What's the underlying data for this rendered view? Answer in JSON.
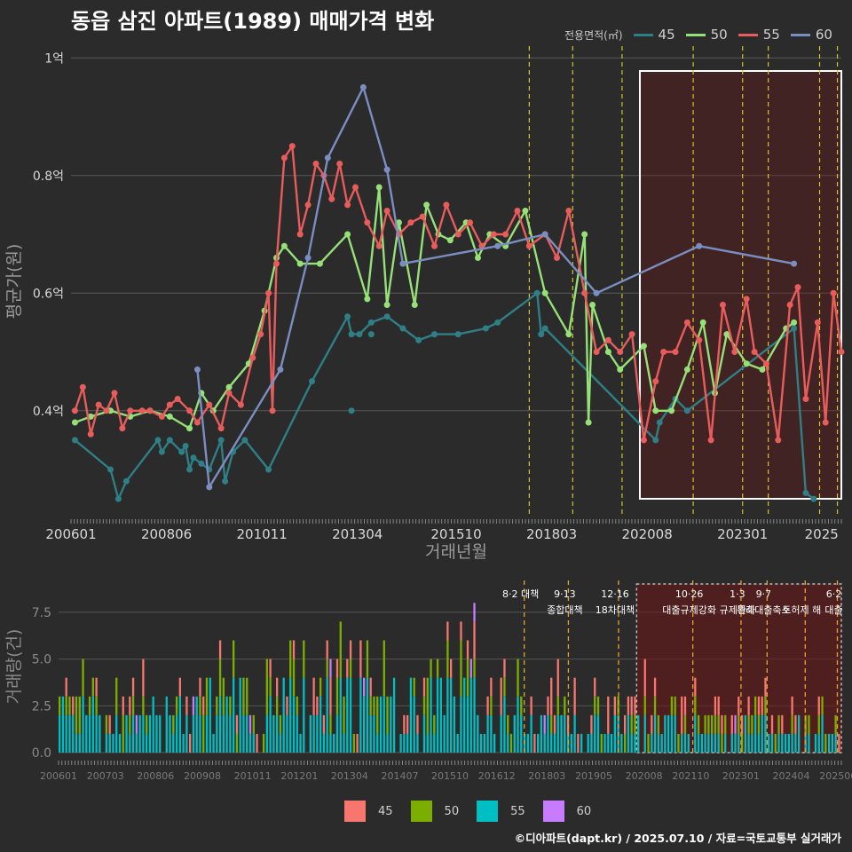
{
  "title": "동읍 삼진 아파트(1989) 매매가격 변화",
  "legend": {
    "label": "전용면적(㎡)",
    "items": [
      {
        "name": "45",
        "color": "#2e7f86"
      },
      {
        "name": "50",
        "color": "#96e078"
      },
      {
        "name": "55",
        "color": "#e85c5c"
      },
      {
        "name": "60",
        "color": "#7b8ec2"
      }
    ]
  },
  "bar_legend": [
    {
      "name": "45",
      "color": "#f8766d"
    },
    {
      "name": "50",
      "color": "#7cae00"
    },
    {
      "name": "55",
      "color": "#00bfc4"
    },
    {
      "name": "60",
      "color": "#c77cff"
    }
  ],
  "footer": "©디아파트(dapt.kr) / 2025.07.10 / 자료=국토교통부 실거래가",
  "chart_data": [
    {
      "type": "line",
      "title": "동읍 삼진 아파트(1989) 매매가격 변화",
      "xlabel": "거래년월",
      "ylabel": "평균가(원)",
      "x_ticks": [
        "200601",
        "200806",
        "201011",
        "201304",
        "201510",
        "201803",
        "202008",
        "202301",
        "2025"
      ],
      "y_ticks": [
        {
          "v": 0.4,
          "label": "0.4억"
        },
        {
          "v": 0.6,
          "label": "0.6억"
        },
        {
          "v": 0.8,
          "label": "0.8억"
        },
        {
          "v": 1.0,
          "label": "1억"
        }
      ],
      "ylim": [
        0.22,
        1.02
      ],
      "xlim": [
        2006.0,
        2025.5
      ],
      "grid": true,
      "legend_position": "top-right",
      "series": [
        {
          "name": "45",
          "color": "#2e7f86",
          "points": [
            [
              2006.1,
              0.35
            ],
            [
              2007.0,
              0.3
            ],
            [
              2007.2,
              0.25
            ],
            [
              2007.4,
              0.28
            ],
            [
              2008.2,
              0.35
            ],
            [
              2008.3,
              0.33
            ],
            [
              2008.5,
              0.35
            ],
            [
              2008.8,
              0.33
            ],
            [
              2008.9,
              0.34
            ],
            [
              2009.0,
              0.3
            ],
            [
              2009.1,
              0.32
            ],
            [
              2009.3,
              0.31
            ],
            [
              2009.5,
              0.3
            ],
            [
              2009.8,
              0.35
            ],
            [
              2009.9,
              0.28
            ],
            [
              2010.1,
              0.33
            ],
            [
              2010.4,
              0.35
            ],
            [
              2011.0,
              0.3
            ],
            [
              2012.1,
              0.45
            ],
            [
              2013.0,
              0.56
            ],
            [
              2013.1,
              0.53
            ],
            [
              2013.3,
              0.53
            ],
            [
              2013.6,
              0.55
            ],
            [
              2014.0,
              0.56
            ],
            [
              2014.4,
              0.54
            ],
            [
              2014.8,
              0.52
            ],
            [
              2015.2,
              0.53
            ],
            [
              2015.8,
              0.53
            ],
            [
              2016.5,
              0.54
            ],
            [
              2016.8,
              0.55
            ],
            [
              2017.8,
              0.6
            ],
            [
              2017.9,
              0.53
            ],
            [
              2018.0,
              0.54
            ],
            [
              2020.8,
              0.35
            ],
            [
              2020.9,
              0.38
            ],
            [
              2021.3,
              0.42
            ],
            [
              2021.6,
              0.4
            ],
            [
              2024.3,
              0.54
            ],
            [
              2024.6,
              0.26
            ],
            [
              2024.8,
              0.25
            ]
          ],
          "extra_points": [
            [
              2013.1,
              0.4
            ],
            [
              2013.6,
              0.53
            ]
          ]
        },
        {
          "name": "50",
          "color": "#96e078",
          "points": [
            [
              2006.1,
              0.38
            ],
            [
              2006.5,
              0.39
            ],
            [
              2007.0,
              0.4
            ],
            [
              2007.5,
              0.39
            ],
            [
              2008.0,
              0.4
            ],
            [
              2008.5,
              0.39
            ],
            [
              2009.0,
              0.37
            ],
            [
              2009.3,
              0.43
            ],
            [
              2009.6,
              0.4
            ],
            [
              2010.0,
              0.44
            ],
            [
              2010.5,
              0.48
            ],
            [
              2010.9,
              0.57
            ],
            [
              2011.2,
              0.66
            ],
            [
              2011.4,
              0.68
            ],
            [
              2011.8,
              0.65
            ],
            [
              2012.3,
              0.65
            ],
            [
              2013.0,
              0.7
            ],
            [
              2013.5,
              0.59
            ],
            [
              2013.8,
              0.78
            ],
            [
              2014.0,
              0.58
            ],
            [
              2014.3,
              0.72
            ],
            [
              2014.7,
              0.58
            ],
            [
              2015.0,
              0.75
            ],
            [
              2015.3,
              0.7
            ],
            [
              2015.6,
              0.69
            ],
            [
              2016.0,
              0.72
            ],
            [
              2016.3,
              0.66
            ],
            [
              2016.6,
              0.7
            ],
            [
              2017.0,
              0.68
            ],
            [
              2017.5,
              0.74
            ],
            [
              2018.0,
              0.6
            ],
            [
              2018.6,
              0.53
            ],
            [
              2019.0,
              0.7
            ],
            [
              2019.1,
              0.38
            ],
            [
              2019.2,
              0.58
            ],
            [
              2019.6,
              0.5
            ],
            [
              2019.9,
              0.47
            ],
            [
              2020.5,
              0.51
            ],
            [
              2020.8,
              0.4
            ],
            [
              2021.2,
              0.4
            ],
            [
              2021.6,
              0.47
            ],
            [
              2022.0,
              0.55
            ],
            [
              2022.3,
              0.43
            ],
            [
              2022.6,
              0.53
            ],
            [
              2023.1,
              0.48
            ],
            [
              2023.5,
              0.47
            ],
            [
              2024.1,
              0.54
            ],
            [
              2024.3,
              0.55
            ]
          ]
        },
        {
          "name": "55",
          "color": "#e85c5c",
          "points": [
            [
              2006.1,
              0.4
            ],
            [
              2006.3,
              0.44
            ],
            [
              2006.5,
              0.36
            ],
            [
              2006.7,
              0.41
            ],
            [
              2006.9,
              0.4
            ],
            [
              2007.1,
              0.43
            ],
            [
              2007.3,
              0.37
            ],
            [
              2007.5,
              0.4
            ],
            [
              2007.8,
              0.4
            ],
            [
              2008.0,
              0.4
            ],
            [
              2008.3,
              0.39
            ],
            [
              2008.5,
              0.41
            ],
            [
              2008.7,
              0.42
            ],
            [
              2009.0,
              0.4
            ],
            [
              2009.2,
              0.38
            ],
            [
              2009.5,
              0.41
            ],
            [
              2009.8,
              0.37
            ],
            [
              2010.0,
              0.43
            ],
            [
              2010.3,
              0.41
            ],
            [
              2010.6,
              0.49
            ],
            [
              2010.8,
              0.53
            ],
            [
              2011.0,
              0.6
            ],
            [
              2011.1,
              0.4
            ],
            [
              2011.2,
              0.65
            ],
            [
              2011.4,
              0.83
            ],
            [
              2011.6,
              0.85
            ],
            [
              2011.8,
              0.7
            ],
            [
              2012.0,
              0.75
            ],
            [
              2012.2,
              0.82
            ],
            [
              2012.4,
              0.8
            ],
            [
              2012.6,
              0.76
            ],
            [
              2012.8,
              0.82
            ],
            [
              2013.0,
              0.75
            ],
            [
              2013.2,
              0.78
            ],
            [
              2013.5,
              0.72
            ],
            [
              2013.8,
              0.68
            ],
            [
              2014.0,
              0.74
            ],
            [
              2014.3,
              0.7
            ],
            [
              2014.6,
              0.72
            ],
            [
              2014.9,
              0.73
            ],
            [
              2015.2,
              0.68
            ],
            [
              2015.5,
              0.75
            ],
            [
              2015.8,
              0.7
            ],
            [
              2016.1,
              0.72
            ],
            [
              2016.4,
              0.68
            ],
            [
              2016.7,
              0.7
            ],
            [
              2017.0,
              0.7
            ],
            [
              2017.3,
              0.74
            ],
            [
              2017.6,
              0.68
            ],
            [
              2018.0,
              0.7
            ],
            [
              2018.3,
              0.66
            ],
            [
              2018.6,
              0.74
            ],
            [
              2019.0,
              0.6
            ],
            [
              2019.3,
              0.5
            ],
            [
              2019.6,
              0.52
            ],
            [
              2019.9,
              0.5
            ],
            [
              2020.2,
              0.53
            ],
            [
              2020.5,
              0.35
            ],
            [
              2020.8,
              0.45
            ],
            [
              2021.0,
              0.5
            ],
            [
              2021.3,
              0.5
            ],
            [
              2021.6,
              0.55
            ],
            [
              2021.9,
              0.52
            ],
            [
              2022.2,
              0.35
            ],
            [
              2022.5,
              0.58
            ],
            [
              2022.8,
              0.5
            ],
            [
              2023.1,
              0.59
            ],
            [
              2023.3,
              0.5
            ],
            [
              2023.6,
              0.48
            ],
            [
              2023.9,
              0.35
            ],
            [
              2024.2,
              0.58
            ],
            [
              2024.4,
              0.61
            ],
            [
              2024.6,
              0.42
            ],
            [
              2024.9,
              0.55
            ],
            [
              2025.1,
              0.38
            ],
            [
              2025.3,
              0.6
            ],
            [
              2025.5,
              0.5
            ]
          ]
        },
        {
          "name": "60",
          "color": "#7b8ec2",
          "points": [
            [
              2009.2,
              0.47
            ],
            [
              2009.5,
              0.27
            ],
            [
              2011.3,
              0.47
            ],
            [
              2012.0,
              0.66
            ],
            [
              2012.5,
              0.83
            ],
            [
              2013.4,
              0.95
            ],
            [
              2014.0,
              0.81
            ],
            [
              2014.4,
              0.65
            ],
            [
              2016.8,
              0.68
            ],
            [
              2018.0,
              0.7
            ],
            [
              2019.3,
              0.6
            ],
            [
              2021.9,
              0.68
            ],
            [
              2024.3,
              0.65
            ]
          ]
        }
      ],
      "highlight_region": {
        "x_start": 2020.4,
        "x_end": 2025.5
      },
      "policy_lines": [
        2017.6,
        2018.7,
        2019.95,
        2021.75,
        2023.0,
        2023.65,
        2024.95,
        2025.4
      ]
    },
    {
      "type": "bar",
      "ylabel": "거래량(건)",
      "x_ticks": [
        "200601",
        "200703",
        "200806",
        "200908",
        "201011",
        "201201",
        "201304",
        "201407",
        "201510",
        "201612",
        "201803",
        "201905",
        "202008",
        "202110",
        "202301",
        "202404",
        "202506"
      ],
      "y_ticks": [
        0.0,
        2.5,
        5.0,
        7.5
      ],
      "ylim": [
        0,
        9.2
      ],
      "xlim": [
        2006.0,
        2025.5
      ],
      "stack_order": [
        "55",
        "50",
        "45",
        "60"
      ],
      "annotations": [
        {
          "date": "8·2 대책",
          "text": "",
          "x": 2017.6
        },
        {
          "date": "9·13",
          "text": "종합대책",
          "x": 2018.7
        },
        {
          "date": "12·16",
          "text": "18차대책",
          "x": 2019.95
        },
        {
          "date": "10·26",
          "text": "대출규제강화",
          "x": 2021.8
        },
        {
          "date": "1·3",
          "text": "규제완화",
          "x": 2023.0
        },
        {
          "date": "9·7",
          "text": "특례대출축소",
          "x": 2023.65
        },
        {
          "date": "",
          "text": "토허제 해",
          "x": 2024.6
        },
        {
          "date": "6·2",
          "text": "대출",
          "x": 2025.4
        }
      ],
      "highlight_region": {
        "x_start": 2020.4,
        "x_end": 2025.5
      }
    }
  ]
}
